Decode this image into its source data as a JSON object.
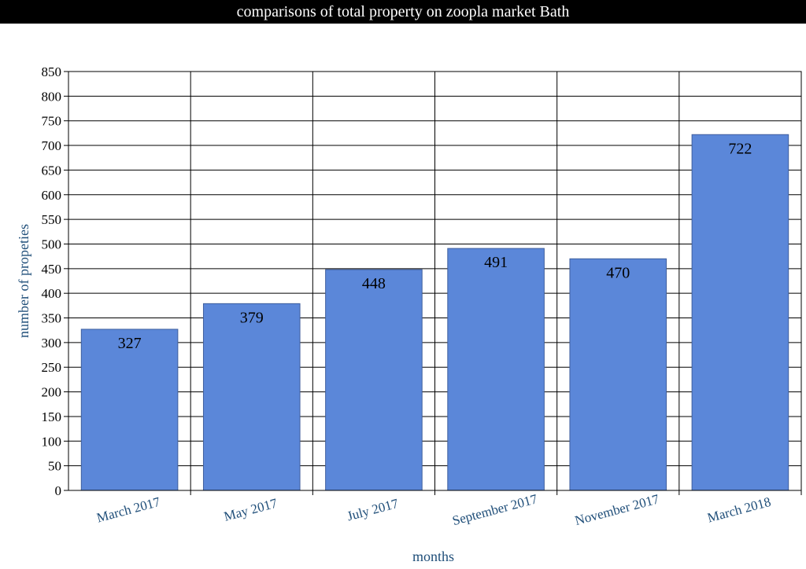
{
  "chart_data": {
    "type": "bar",
    "title": "comparisons of total property on zoopla market Bath",
    "xlabel": "months",
    "ylabel": "number of propeties",
    "categories": [
      "March 2017",
      "May 2017",
      "July 2017",
      "September 2017",
      "November 2017",
      "March 2018"
    ],
    "values": [
      327,
      379,
      448,
      491,
      470,
      722
    ],
    "ylim": [
      0,
      850
    ],
    "yticks": [
      0,
      50,
      100,
      150,
      200,
      250,
      300,
      350,
      400,
      450,
      500,
      550,
      600,
      650,
      700,
      750,
      800,
      850
    ],
    "grid": true,
    "legend": "none",
    "data_labels": true,
    "colors": {
      "bar": "#5b87d9",
      "bar_edge": "#3f5f9e",
      "title_bar": "#000000",
      "title_text": "#ffffff",
      "axis_label": "#1f4e79"
    }
  }
}
